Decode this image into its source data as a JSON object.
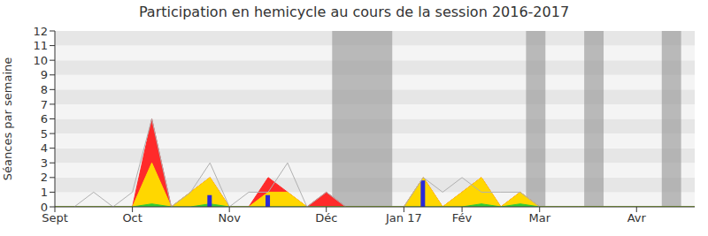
{
  "chart_data": {
    "type": "area",
    "title": "Participation en hemicycle au cours de la session 2016-2017",
    "y_label": "Séances par semaine",
    "x": [
      0,
      1,
      2,
      3,
      4,
      5,
      6,
      7,
      8,
      9,
      10,
      11,
      12,
      13,
      14,
      15,
      16,
      17,
      18,
      19,
      20,
      21,
      22,
      23,
      24,
      25,
      26,
      27,
      28,
      29,
      30,
      31,
      32,
      33
    ],
    "xlim": [
      0,
      33
    ],
    "xticks": [
      {
        "value": 0,
        "label": "Sept"
      },
      {
        "value": 4,
        "label": "Oct"
      },
      {
        "value": 9,
        "label": "Nov"
      },
      {
        "value": 14,
        "label": "Déc"
      },
      {
        "value": 18,
        "label": "Jan 17"
      },
      {
        "value": 21,
        "label": "Fév"
      },
      {
        "value": 25,
        "label": "Mar"
      },
      {
        "value": 30,
        "label": "Avr"
      }
    ],
    "ylim": [
      0,
      12
    ],
    "yticks": [
      0,
      1,
      2,
      3,
      4,
      5,
      6,
      7,
      8,
      9,
      10,
      11,
      12
    ],
    "grid": true,
    "series": [
      {
        "type": "area",
        "color": "#ff2a2a",
        "values": [
          0,
          0,
          0,
          0,
          0,
          6,
          0,
          1,
          2,
          0,
          0,
          2,
          1,
          0,
          1,
          0,
          0,
          0,
          0,
          2,
          0,
          1,
          2,
          0,
          1,
          0,
          0,
          0,
          0,
          0,
          0,
          0,
          0,
          0
        ]
      },
      {
        "type": "area",
        "color": "#ffd700",
        "values": [
          0,
          0,
          0,
          0,
          0,
          3,
          0,
          1,
          2,
          0,
          0,
          1,
          1,
          0,
          0,
          0,
          0,
          0,
          0,
          2,
          0,
          1,
          2,
          0,
          1,
          0,
          0,
          0,
          0,
          0,
          0,
          0,
          0,
          0
        ]
      },
      {
        "type": "area",
        "color": "#33cc33",
        "values": [
          0,
          0,
          0,
          0,
          0,
          0.2,
          0,
          0,
          0.2,
          0,
          0,
          0,
          0,
          0,
          0,
          0,
          0,
          0,
          0,
          0,
          0,
          0,
          0.2,
          0,
          0.2,
          0,
          0,
          0,
          0,
          0,
          0,
          0,
          0,
          0
        ]
      },
      {
        "type": "bar",
        "color": "#2a2ad8",
        "values": [
          null,
          null,
          null,
          null,
          null,
          null,
          null,
          null,
          0.8,
          null,
          null,
          0.8,
          null,
          null,
          null,
          null,
          null,
          null,
          null,
          1.8,
          null,
          null,
          null,
          null,
          null,
          null,
          null,
          null,
          null,
          null,
          null,
          null,
          null,
          null
        ]
      },
      {
        "type": "line",
        "color": "#b0b0b0",
        "values": [
          null,
          0,
          1,
          0,
          1,
          6,
          0,
          1,
          3,
          0,
          1,
          1,
          3,
          0,
          1,
          0,
          null,
          null,
          0,
          2,
          1,
          2,
          1,
          1,
          1,
          0,
          null,
          null,
          null,
          null,
          null,
          null,
          null,
          null
        ]
      }
    ],
    "bands": [
      [
        14.3,
        17.4
      ],
      [
        24.3,
        25.3
      ],
      [
        27.3,
        28.3
      ],
      [
        31.3,
        32.3
      ]
    ]
  }
}
